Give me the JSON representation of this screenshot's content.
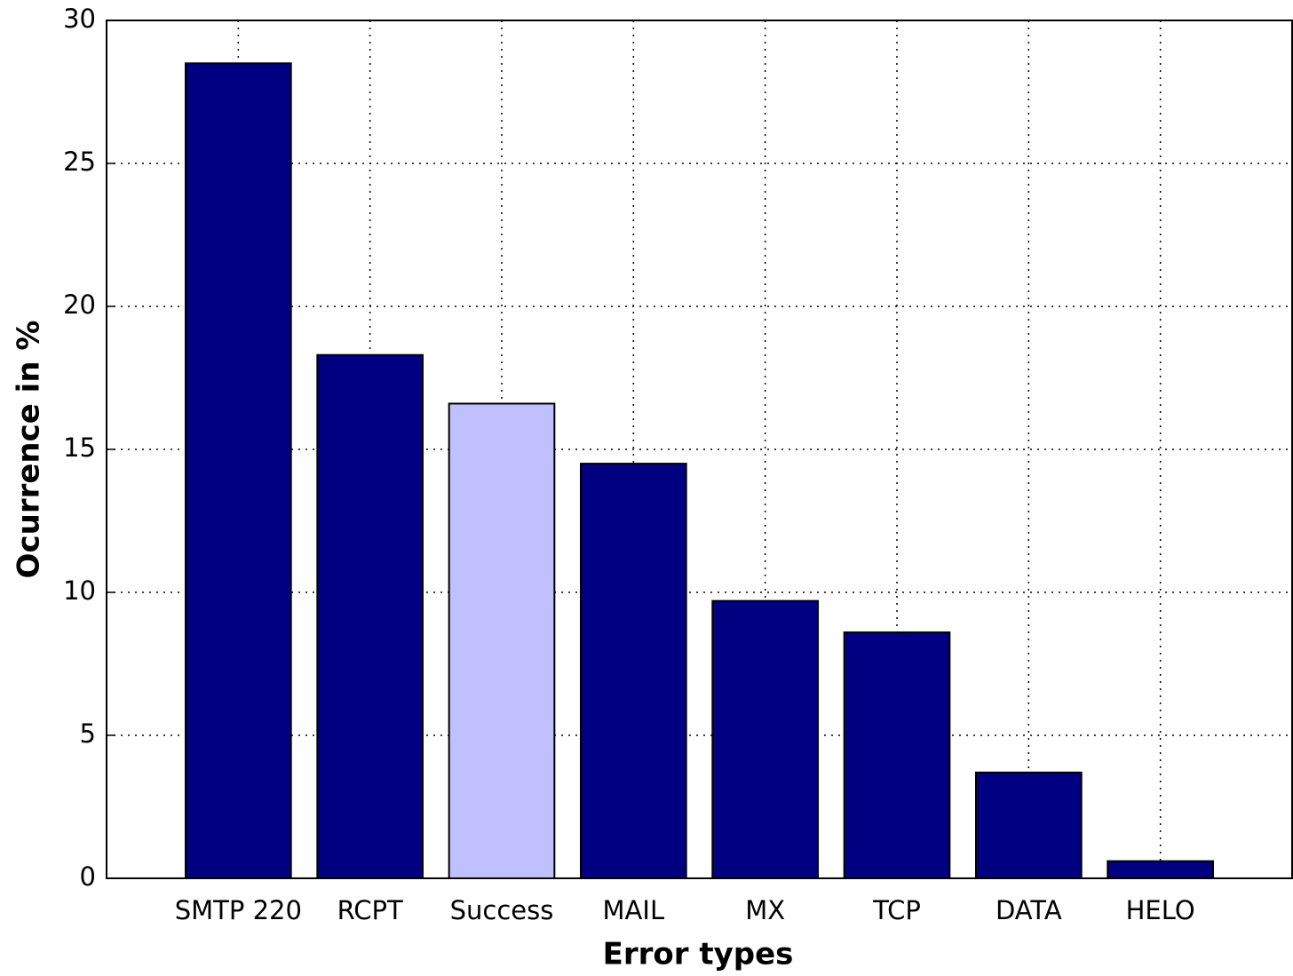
{
  "chart_data": {
    "type": "bar",
    "x_label": "Error types",
    "y_label": "Ocurrence in %",
    "categories": [
      "SMTP 220",
      "RCPT",
      "Success",
      "MAIL",
      "MX",
      "TCP",
      "DATA",
      "HELO"
    ],
    "values": [
      28.5,
      18.3,
      16.6,
      14.5,
      9.7,
      8.6,
      3.7,
      0.6
    ],
    "colors": [
      "#000080",
      "#000080",
      "#c0c0ff",
      "#000080",
      "#000080",
      "#000080",
      "#000080",
      "#000080"
    ],
    "ylim": [
      0,
      30
    ],
    "yticks": [
      0,
      5,
      10,
      15,
      20,
      25,
      30
    ],
    "grid": true
  }
}
